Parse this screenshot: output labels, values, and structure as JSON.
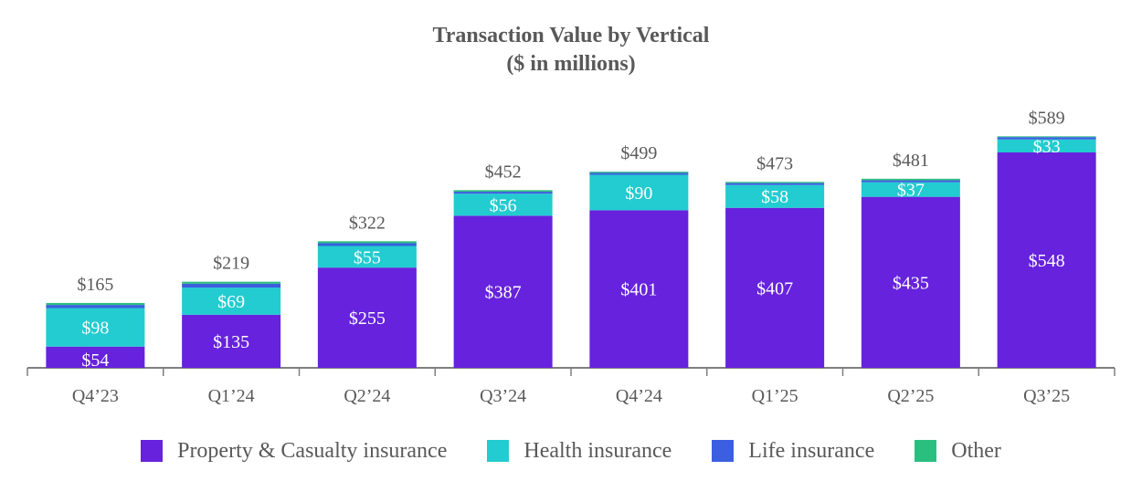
{
  "chart_data": {
    "type": "bar",
    "stacked": true,
    "title": "Transaction Value by Vertical",
    "subtitle": "($ in millions)",
    "categories": [
      "Q4’23",
      "Q1’24",
      "Q2’24",
      "Q3’24",
      "Q4’24",
      "Q1’25",
      "Q2’25",
      "Q3’25"
    ],
    "series": [
      {
        "name": "Property & Casualty insurance",
        "color": "#6622DD",
        "values": [
          54,
          135,
          255,
          387,
          401,
          407,
          435,
          548
        ],
        "labels": [
          "$54",
          "$135",
          "$255",
          "$387",
          "$401",
          "$407",
          "$435",
          "$548"
        ]
      },
      {
        "name": "Health insurance",
        "color": "#22CCD0",
        "values": [
          98,
          69,
          55,
          56,
          90,
          58,
          37,
          33
        ],
        "labels": [
          "$98",
          "$69",
          "$55",
          "$56",
          "$90",
          "$58",
          "$37",
          "$33"
        ]
      },
      {
        "name": "Life insurance",
        "color": "#3B5FE0",
        "values": [
          8,
          10,
          7,
          5,
          5,
          5,
          5,
          6
        ],
        "labels": [
          "",
          "",
          "",
          "",
          "",
          "",
          "",
          ""
        ]
      },
      {
        "name": "Other",
        "color": "#2BBF7F",
        "values": [
          5,
          5,
          5,
          4,
          3,
          3,
          4,
          2
        ],
        "labels": [
          "",
          "",
          "",
          "",
          "",
          "",
          "",
          ""
        ]
      }
    ],
    "totals": [
      "$165",
      "$219",
      "$322",
      "$452",
      "$499",
      "$473",
      "$481",
      "$589"
    ],
    "totals_values": [
      165,
      219,
      322,
      452,
      499,
      473,
      481,
      589
    ],
    "ylim": [
      0,
      600
    ],
    "grid": false,
    "legend_position": "bottom"
  }
}
